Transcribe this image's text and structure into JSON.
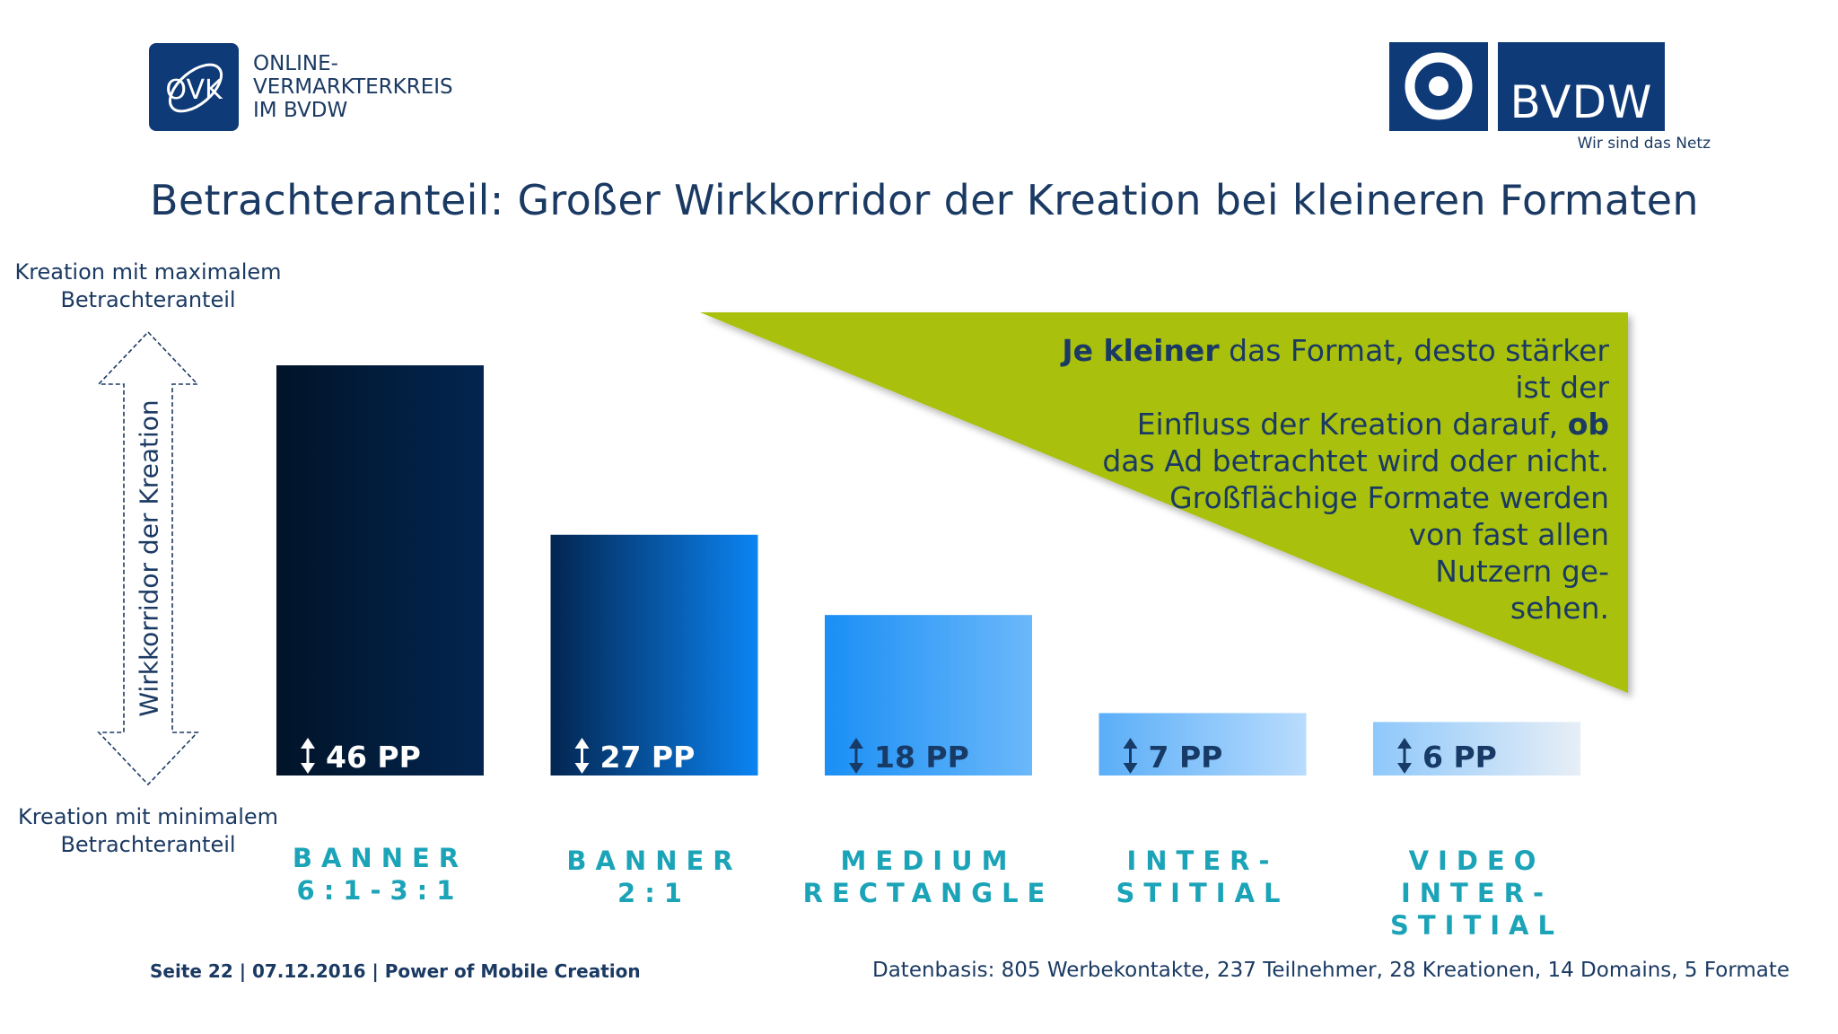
{
  "header": {
    "ovk_logo_mark": "OVK",
    "ovk_name_lines": [
      "ONLINE-",
      "VERMARKTERKREIS",
      "IM BVDW"
    ],
    "bvdw_logo_word": "BVDW",
    "bvdw_tagline": "Wir sind das Netz"
  },
  "title": "Betrachteranteil: Großer Wirkkorridor der Kreation bei kleineren Formaten",
  "axis": {
    "top_label": "Kreation mit maximalem Betrachteranteil",
    "bottom_label": "Kreation mit minimalem Betrachteranteil",
    "corridor_label": "Wirkkorridor der Kreation"
  },
  "chart_data": {
    "type": "bar",
    "categories": [
      [
        "BANNER",
        "6:1-3:1"
      ],
      [
        "BANNER",
        "2:1"
      ],
      [
        "MEDIUM",
        "RECTANGLE"
      ],
      [
        "INTER-",
        "STITIAL"
      ],
      [
        "VIDEO",
        "INTER-",
        "STITIAL"
      ]
    ],
    "values": [
      46,
      27,
      18,
      7,
      6
    ],
    "value_labels": [
      "46 PP",
      "27 PP",
      "18 PP",
      "7 PP",
      "6 PP"
    ],
    "unit": "PP",
    "ylim": [
      0,
      50
    ],
    "grid": false,
    "legend": "none",
    "colors": [
      [
        "#011428",
        "#032550"
      ],
      [
        "#032550",
        "#0b84f3"
      ],
      [
        "#1a8ff5",
        "#6bb8fa"
      ],
      [
        "#5aaef8",
        "#b9dcfd"
      ],
      [
        "#8ec8fb",
        "#e7eef6"
      ]
    ]
  },
  "callout": {
    "lead_bold": "Je kleiner",
    "line1_rest": " das Format, desto stärker ist der",
    "line2_start": "Einfluss der Kreation darauf, ",
    "line2_bold": "ob",
    "line3": "das Ad betrachtet wird oder nicht.",
    "line4": "Großflächige Formate werden",
    "line5": "von fast allen",
    "line6": "Nutzern ge-",
    "line7": "sehen.",
    "color": "#a9c10c"
  },
  "footer": {
    "left": "Seite 22 | 07.12.2016 | Power of Mobile Creation",
    "right": "Datenbasis: 805 Werbekontakte, 237 Teilnehmer, 28 Kreationen, 14 Domains, 5 Formate"
  }
}
